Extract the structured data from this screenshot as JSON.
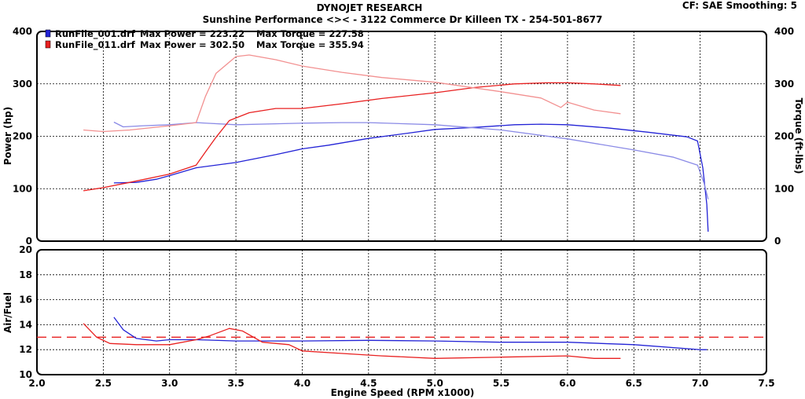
{
  "header": {
    "title": "DYNOJET RESEARCH",
    "subtitle": "Sunshine Performance <><  -  3122 Commerce Dr Killeen TX  -  254-501-8677",
    "settings": "CF: SAE  Smoothing: 5"
  },
  "legend": [
    {
      "file": "RunFile_001.drf",
      "max_power_label": "Max Power = 223.22",
      "max_torque_label": "Max Torque = 227.58",
      "color": "#2323d6"
    },
    {
      "file": "RunFile_011.drf",
      "max_power_label": "Max Power = 302.50",
      "max_torque_label": "Max Torque = 355.94",
      "color": "#e82020"
    }
  ],
  "colors": {
    "run1": "#2323d6",
    "run1_light": "#8a8ae6",
    "run2": "#e82020",
    "run2_light": "#f29090",
    "grid": "#000000",
    "target_afr": "#e82020"
  },
  "chart_data": [
    {
      "type": "line",
      "name": "power-torque",
      "xlabel": "",
      "ylabel": "Power (hp)",
      "y2label": "Torque (ft-lbs)",
      "xlim": [
        2.0,
        7.5
      ],
      "xticks": [
        2.0,
        2.5,
        3.0,
        3.5,
        4.0,
        4.5,
        5.0,
        5.5,
        6.0,
        6.5,
        7.0,
        7.5
      ],
      "ylim": [
        0,
        400
      ],
      "yticks": [
        0,
        100,
        200,
        300,
        400
      ],
      "y2lim": [
        0,
        400
      ],
      "y2ticks": [
        0,
        100,
        200,
        300,
        400
      ],
      "grid": true,
      "series": [
        {
          "name": "RunFile_001.drf Power",
          "color_key": "run1",
          "axis": "left",
          "x": [
            2.58,
            2.75,
            2.9,
            3.0,
            3.2,
            3.5,
            3.8,
            4.0,
            4.2,
            4.5,
            4.8,
            5.0,
            5.3,
            5.6,
            5.8,
            6.0,
            6.3,
            6.6,
            6.9,
            6.98,
            7.02,
            7.05,
            7.06
          ],
          "y": [
            111,
            112,
            118,
            125,
            140,
            150,
            165,
            176,
            183,
            196,
            206,
            213,
            217,
            222,
            223,
            222,
            216,
            208,
            199,
            191,
            140,
            70,
            18
          ]
        },
        {
          "name": "RunFile_001.drf Torque",
          "color_key": "run1_light",
          "axis": "right",
          "x": [
            2.58,
            2.65,
            2.8,
            3.0,
            3.2,
            3.5,
            4.0,
            4.3,
            4.5,
            5.0,
            5.5,
            6.0,
            6.5,
            6.8,
            6.98,
            7.03,
            7.06
          ],
          "y": [
            227,
            218,
            220,
            222,
            226,
            222,
            225,
            226,
            226,
            222,
            212,
            195,
            174,
            160,
            145,
            110,
            80
          ]
        },
        {
          "name": "RunFile_011.drf Power",
          "color_key": "run2",
          "axis": "left",
          "x": [
            2.35,
            2.5,
            2.7,
            3.0,
            3.2,
            3.27,
            3.35,
            3.45,
            3.6,
            3.8,
            4.0,
            4.3,
            4.6,
            5.0,
            5.3,
            5.6,
            5.85,
            6.0,
            6.2,
            6.4
          ],
          "y": [
            96,
            102,
            112,
            128,
            145,
            170,
            198,
            230,
            245,
            253,
            253,
            262,
            272,
            283,
            293,
            300,
            302,
            302,
            300,
            297
          ]
        },
        {
          "name": "RunFile_011.drf Torque",
          "color_key": "run2_light",
          "axis": "right",
          "x": [
            2.35,
            2.5,
            2.7,
            3.0,
            3.2,
            3.27,
            3.35,
            3.5,
            3.6,
            3.8,
            4.0,
            4.3,
            4.6,
            5.0,
            5.5,
            5.8,
            5.95,
            6.0,
            6.2,
            6.4
          ],
          "y": [
            212,
            209,
            212,
            220,
            226,
            276,
            320,
            352,
            355,
            346,
            334,
            322,
            312,
            303,
            285,
            273,
            255,
            265,
            250,
            243
          ]
        }
      ]
    },
    {
      "type": "line",
      "name": "air-fuel",
      "xlabel": "Engine Speed (RPM x1000)",
      "ylabel": "Air/Fuel",
      "xlim": [
        2.0,
        7.5
      ],
      "xticks": [
        2.0,
        2.5,
        3.0,
        3.5,
        4.0,
        4.5,
        5.0,
        5.5,
        6.0,
        6.5,
        7.0,
        7.5
      ],
      "ylim": [
        10,
        20
      ],
      "yticks": [
        10,
        12,
        14,
        16,
        18,
        20
      ],
      "grid": true,
      "reference_line": 13.0,
      "series": [
        {
          "name": "RunFile_001.drf AFR",
          "color_key": "run1",
          "x": [
            2.58,
            2.65,
            2.75,
            2.9,
            3.0,
            3.2,
            3.5,
            4.0,
            4.5,
            5.0,
            5.5,
            6.0,
            6.5,
            7.0,
            7.05
          ],
          "y": [
            14.6,
            13.6,
            12.9,
            12.7,
            12.8,
            12.8,
            12.7,
            12.7,
            12.75,
            12.7,
            12.6,
            12.6,
            12.4,
            12.0,
            12.0
          ]
        },
        {
          "name": "RunFile_011.drf AFR",
          "color_key": "run2",
          "x": [
            2.35,
            2.45,
            2.55,
            2.75,
            3.0,
            3.2,
            3.3,
            3.45,
            3.55,
            3.7,
            3.9,
            4.0,
            4.3,
            4.6,
            5.0,
            5.5,
            6.0,
            6.2,
            6.4
          ],
          "y": [
            14.1,
            13.0,
            12.5,
            12.4,
            12.4,
            12.8,
            13.1,
            13.7,
            13.5,
            12.6,
            12.4,
            11.9,
            11.7,
            11.5,
            11.3,
            11.4,
            11.5,
            11.3,
            11.3
          ]
        }
      ]
    }
  ]
}
